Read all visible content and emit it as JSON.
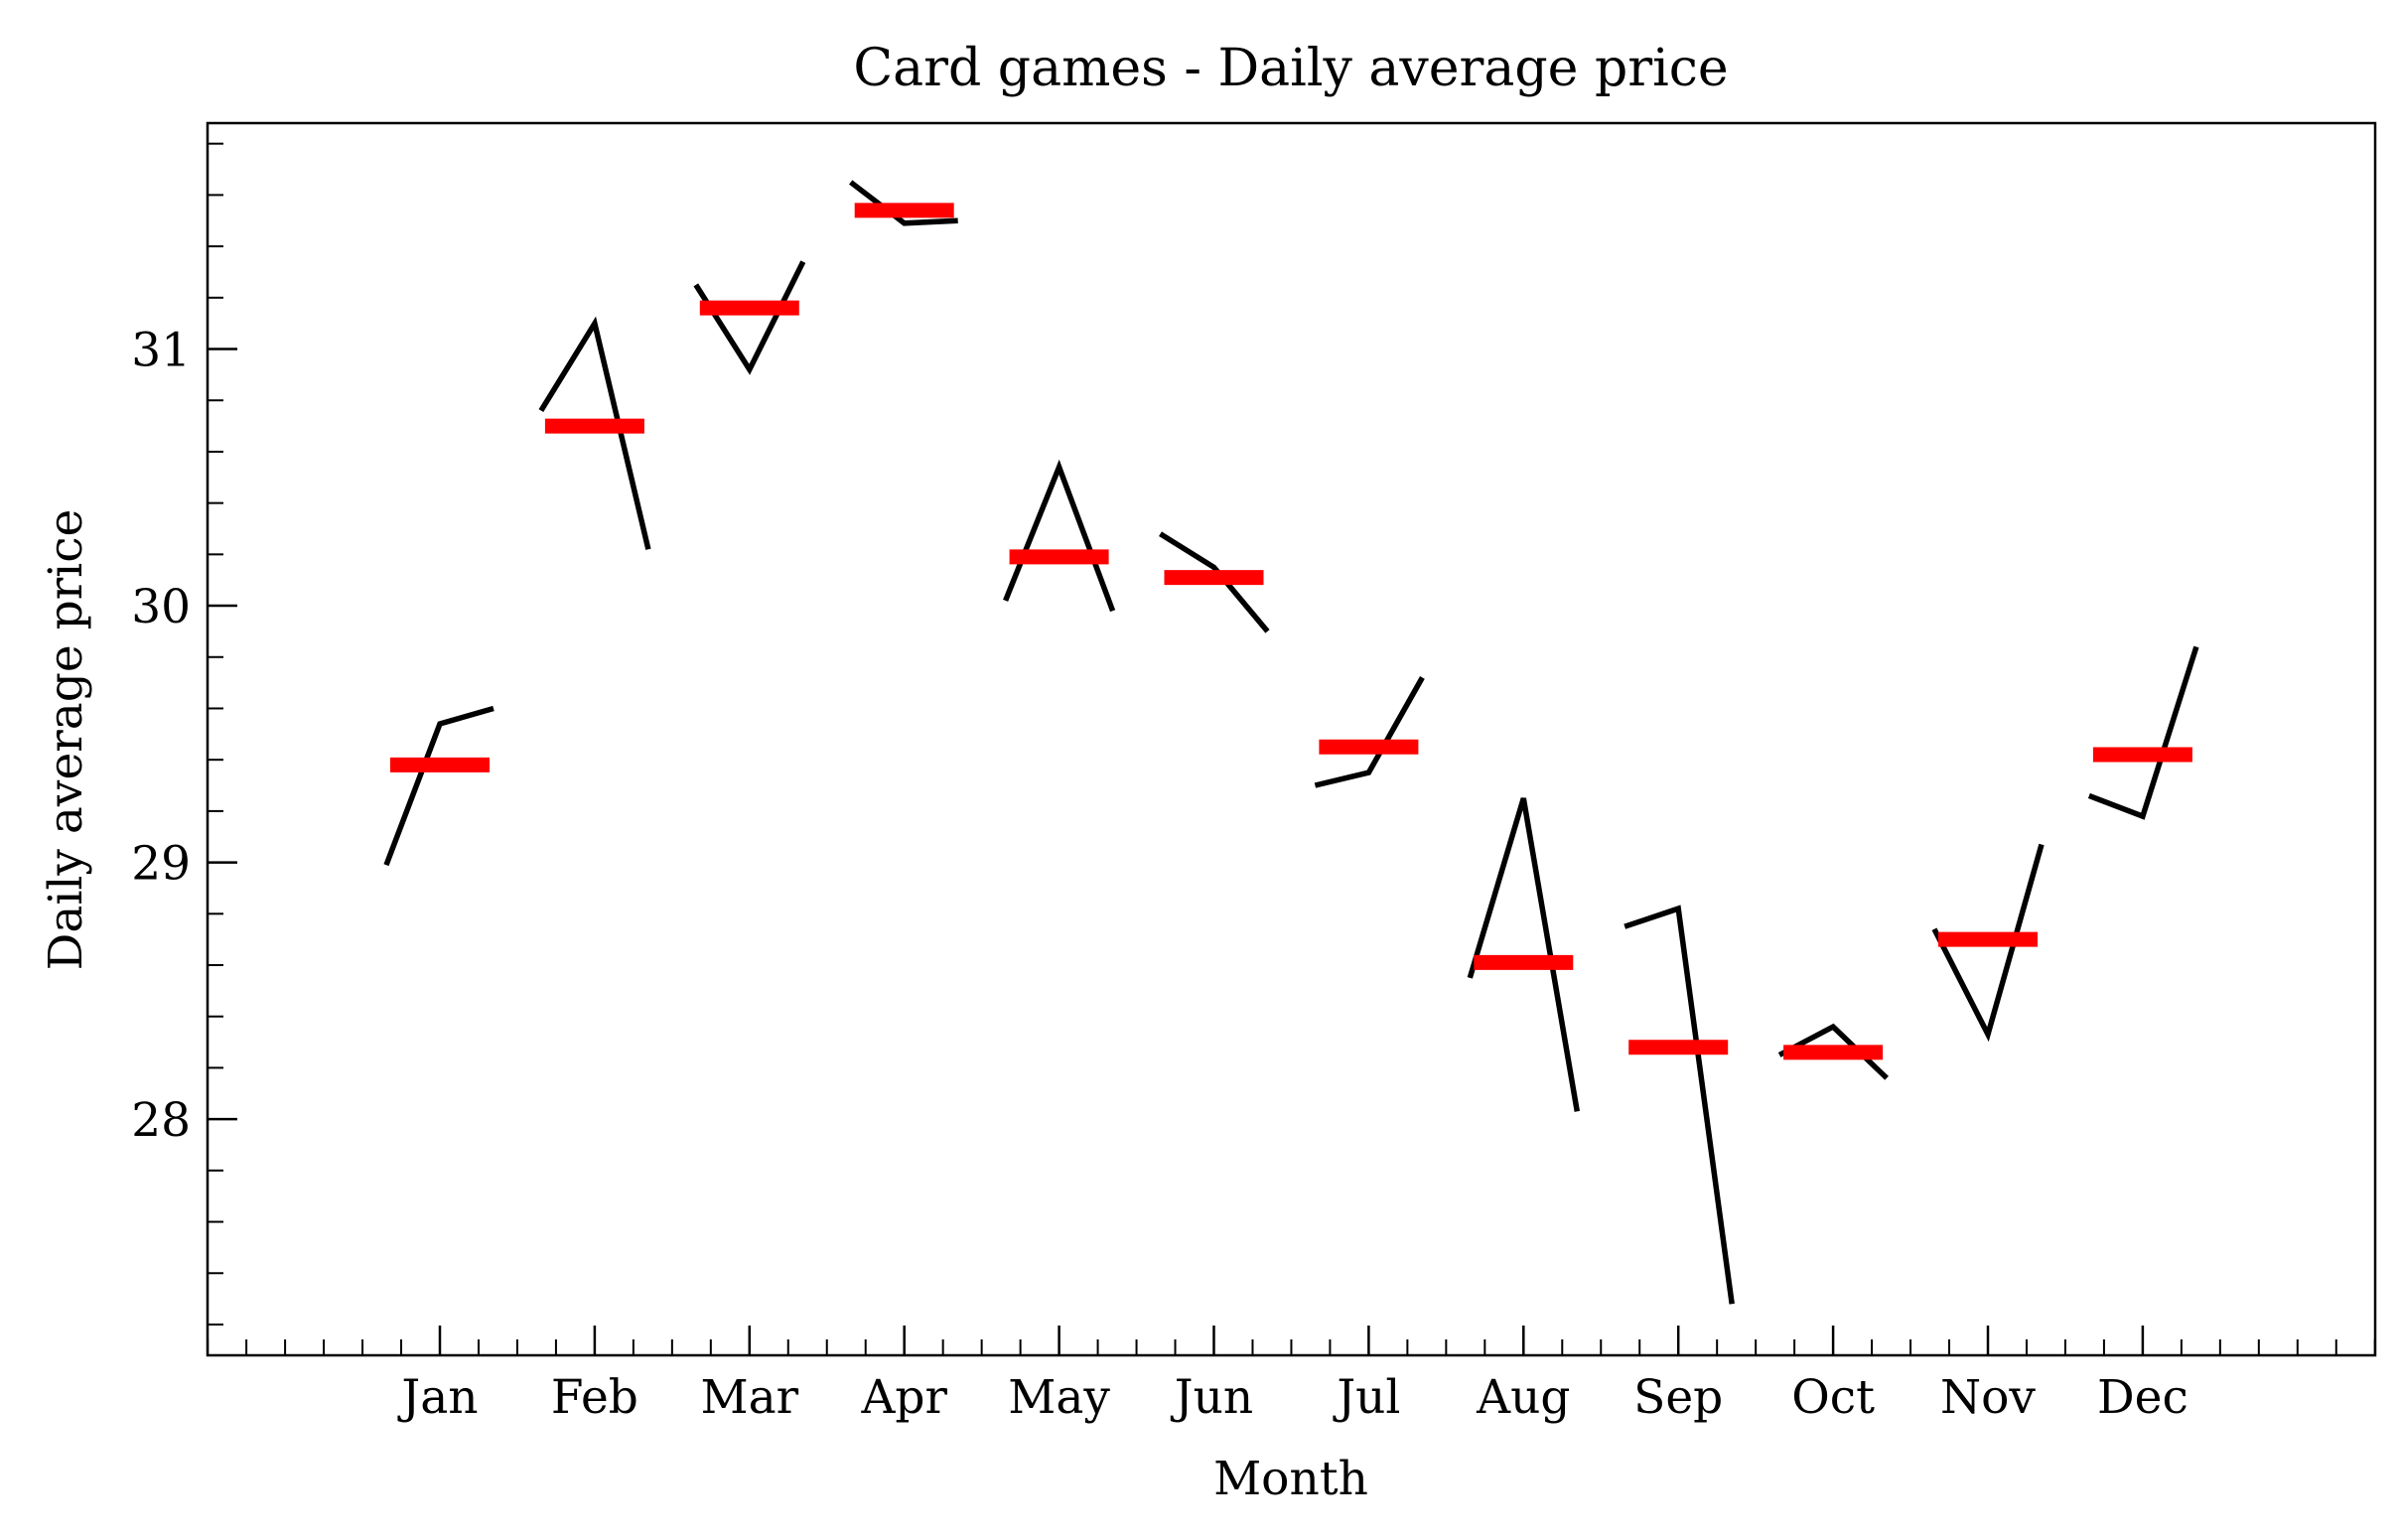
{
  "chart_data": {
    "type": "line",
    "title": "Card games - Daily average price",
    "xlabel": "Month",
    "ylabel": "Daily average price",
    "categories": [
      "Jan",
      "Feb",
      "Mar",
      "Apr",
      "May",
      "Jun",
      "Jul",
      "Aug",
      "Sep",
      "Oct",
      "Nov",
      "Dec"
    ],
    "yticks": [
      28,
      29,
      30,
      31
    ],
    "ylim": [
      27.08,
      31.88
    ],
    "grid": false,
    "series": [
      {
        "values": [
          [
            28.99,
            29.54,
            29.6
          ],
          [
            30.76,
            31.1,
            30.22
          ],
          [
            31.25,
            30.92,
            31.34
          ],
          [
            31.65,
            31.49,
            31.5
          ],
          [
            30.02,
            30.54,
            29.98
          ],
          [
            30.28,
            30.15,
            29.9
          ],
          [
            29.3,
            29.35,
            29.72
          ],
          [
            28.55,
            29.25,
            28.03
          ],
          [
            28.75,
            28.82,
            27.28
          ],
          [
            28.25,
            28.36,
            28.16
          ],
          [
            28.74,
            28.33,
            29.07
          ],
          [
            29.26,
            29.18,
            29.84
          ]
        ],
        "color": "#000000"
      },
      {
        "values": [
          29.38,
          30.7,
          31.16,
          31.54,
          30.19,
          30.11,
          29.45,
          28.61,
          28.28,
          28.26,
          28.7,
          29.42
        ],
        "color": "#ff0000"
      }
    ]
  }
}
